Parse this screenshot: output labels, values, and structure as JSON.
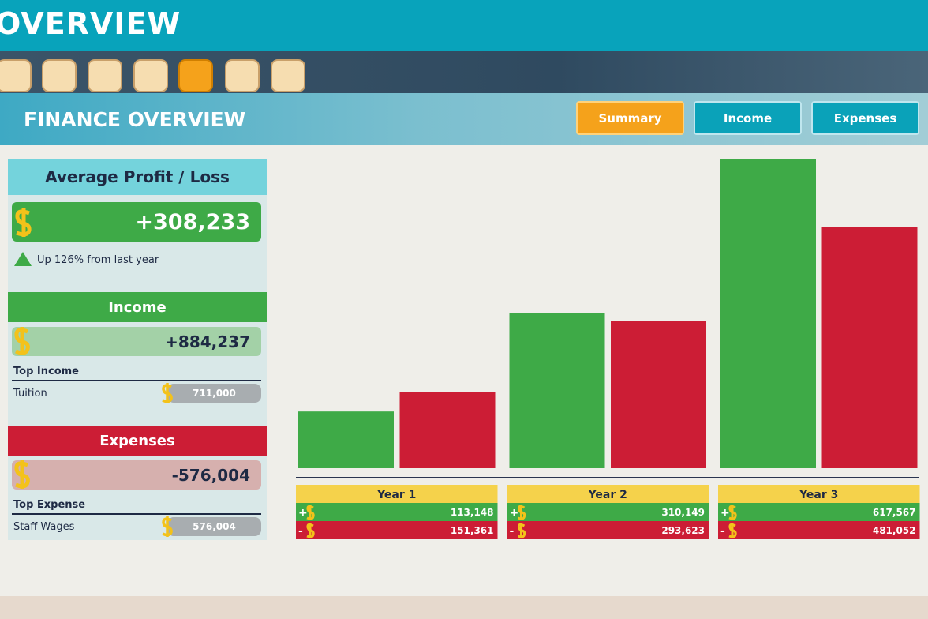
{
  "header": {
    "title": "OVERVIEW",
    "subtitle": "FINANCE OVERVIEW"
  },
  "tabs": [
    "Summary",
    "Income",
    "Expenses"
  ],
  "summary": {
    "title": "Average Profit / Loss",
    "value": "+308,233",
    "change": "Up 126% from last year"
  },
  "income": {
    "title": "Income",
    "total": "+884,237",
    "top_label": "Top Income",
    "top_name": "Tuition",
    "top_value": "711,000"
  },
  "expenses": {
    "title": "Expenses",
    "total": "-576,004",
    "top_label": "Top Expense",
    "top_name": "Staff Wages",
    "top_value": "576,004"
  },
  "chart_data": {
    "type": "bar",
    "categories": [
      "Year 1",
      "Year 2",
      "Year 3"
    ],
    "series": [
      {
        "name": "+",
        "color": "#3eaa47",
        "values": [
          113148,
          310149,
          617567
        ],
        "value_labels": [
          "113,148",
          "310,149",
          "617,567"
        ]
      },
      {
        "name": "-",
        "color": "#cc1d35",
        "values": [
          151361,
          293623,
          481052
        ],
        "value_labels": [
          "151,361",
          "293,623",
          "481,052"
        ]
      }
    ]
  }
}
